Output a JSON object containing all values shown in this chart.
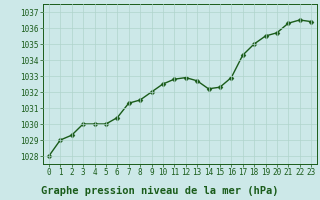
{
  "x": [
    0,
    1,
    2,
    3,
    4,
    5,
    6,
    7,
    8,
    9,
    10,
    11,
    12,
    13,
    14,
    15,
    16,
    17,
    18,
    19,
    20,
    21,
    22,
    23
  ],
  "y": [
    1028.0,
    1029.0,
    1029.3,
    1030.0,
    1030.0,
    1030.0,
    1030.4,
    1031.3,
    1031.5,
    1032.0,
    1032.5,
    1032.8,
    1032.9,
    1032.7,
    1032.2,
    1032.3,
    1032.9,
    1034.3,
    1035.0,
    1035.5,
    1035.7,
    1036.3,
    1036.5,
    1036.4
  ],
  "ylim": [
    1027.5,
    1037.5
  ],
  "yticks": [
    1028,
    1029,
    1030,
    1031,
    1032,
    1033,
    1034,
    1035,
    1036,
    1037
  ],
  "xticks": [
    0,
    1,
    2,
    3,
    4,
    5,
    6,
    7,
    8,
    9,
    10,
    11,
    12,
    13,
    14,
    15,
    16,
    17,
    18,
    19,
    20,
    21,
    22,
    23
  ],
  "line_color": "#1a5c1a",
  "marker_color": "#1a5c1a",
  "bg_color": "#cce8e8",
  "grid_color": "#b0d4cc",
  "xlabel": "Graphe pression niveau de la mer (hPa)",
  "xlabel_color": "#1a5c1a",
  "xlabel_fontsize": 7.5,
  "tick_fontsize": 5.5,
  "line_width": 1.0,
  "marker_size": 2.5,
  "bottom_bg": "#cce8cc"
}
